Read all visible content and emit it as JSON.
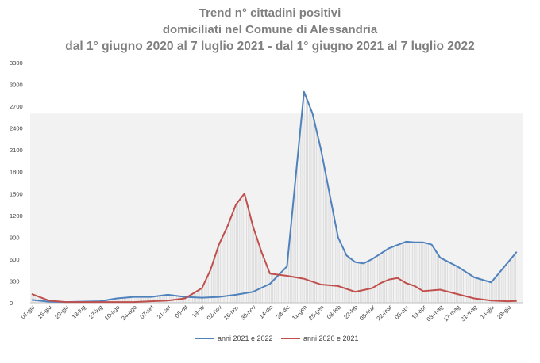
{
  "chart_data": {
    "type": "line",
    "title": [
      "Trend n° cittadini positivi",
      "domiciliati nel Comune di Alessandria",
      "dal 1° giugno 2020 al 7 luglio 2021 - dal 1° giugno 2021 al 7 luglio 2022"
    ],
    "xlabel": "",
    "ylabel": "",
    "ylim": [
      0,
      3300
    ],
    "yticks": [
      0,
      300,
      600,
      900,
      1200,
      1500,
      1800,
      2100,
      2400,
      2700,
      3000,
      3300
    ],
    "x_tick_labels": [
      "01-giu",
      "15-giu",
      "29-giu",
      "13-lug",
      "27-lug",
      "10-ago",
      "24-ago",
      "07-set",
      "21-set",
      "05-ott",
      "19-ott",
      "02-nov",
      "16-nov",
      "30-nov",
      "14-dic",
      "28-dic",
      "11-gen",
      "25-gen",
      "08-feb",
      "22-feb",
      "08-mar",
      "22-mar",
      "05-apr",
      "19-apr",
      "03-mag",
      "17-mag",
      "31-mag",
      "14-giu",
      "28-giu"
    ],
    "legend_position": "bottom",
    "grid": false,
    "series": [
      {
        "name": "anni 2021 e 2022",
        "color": "#4f81bd",
        "x_index": [
          0,
          1,
          2,
          3,
          4,
          5,
          6,
          7,
          8,
          9,
          10,
          11,
          12,
          13,
          14,
          15,
          16,
          16.5,
          17,
          17.5,
          18,
          18.5,
          19,
          19.5,
          20,
          21,
          22,
          22.5,
          23,
          23.5,
          24,
          25,
          26,
          27,
          28,
          28.5
        ],
        "values": [
          40,
          15,
          10,
          15,
          20,
          60,
          80,
          80,
          110,
          80,
          70,
          80,
          110,
          150,
          260,
          500,
          2900,
          2600,
          2100,
          1500,
          900,
          650,
          560,
          540,
          600,
          750,
          840,
          830,
          830,
          800,
          620,
          500,
          350,
          280,
          560,
          700
        ]
      },
      {
        "name": "anni 2020 e 2021",
        "color": "#c0504d",
        "x_index": [
          0,
          1,
          2,
          3,
          4,
          5,
          6,
          7,
          8,
          9,
          10,
          10.5,
          11,
          11.5,
          12,
          12.5,
          13,
          13.5,
          14,
          15,
          16,
          17,
          18,
          19,
          20,
          20.5,
          21,
          21.5,
          22,
          22.5,
          23,
          24,
          25,
          26,
          27,
          28,
          28.5
        ],
        "values": [
          120,
          30,
          10,
          10,
          10,
          10,
          10,
          20,
          30,
          60,
          200,
          450,
          800,
          1050,
          1350,
          1500,
          1050,
          700,
          400,
          370,
          330,
          250,
          230,
          150,
          200,
          270,
          320,
          340,
          270,
          230,
          160,
          180,
          120,
          60,
          30,
          20,
          25
        ]
      }
    ]
  }
}
